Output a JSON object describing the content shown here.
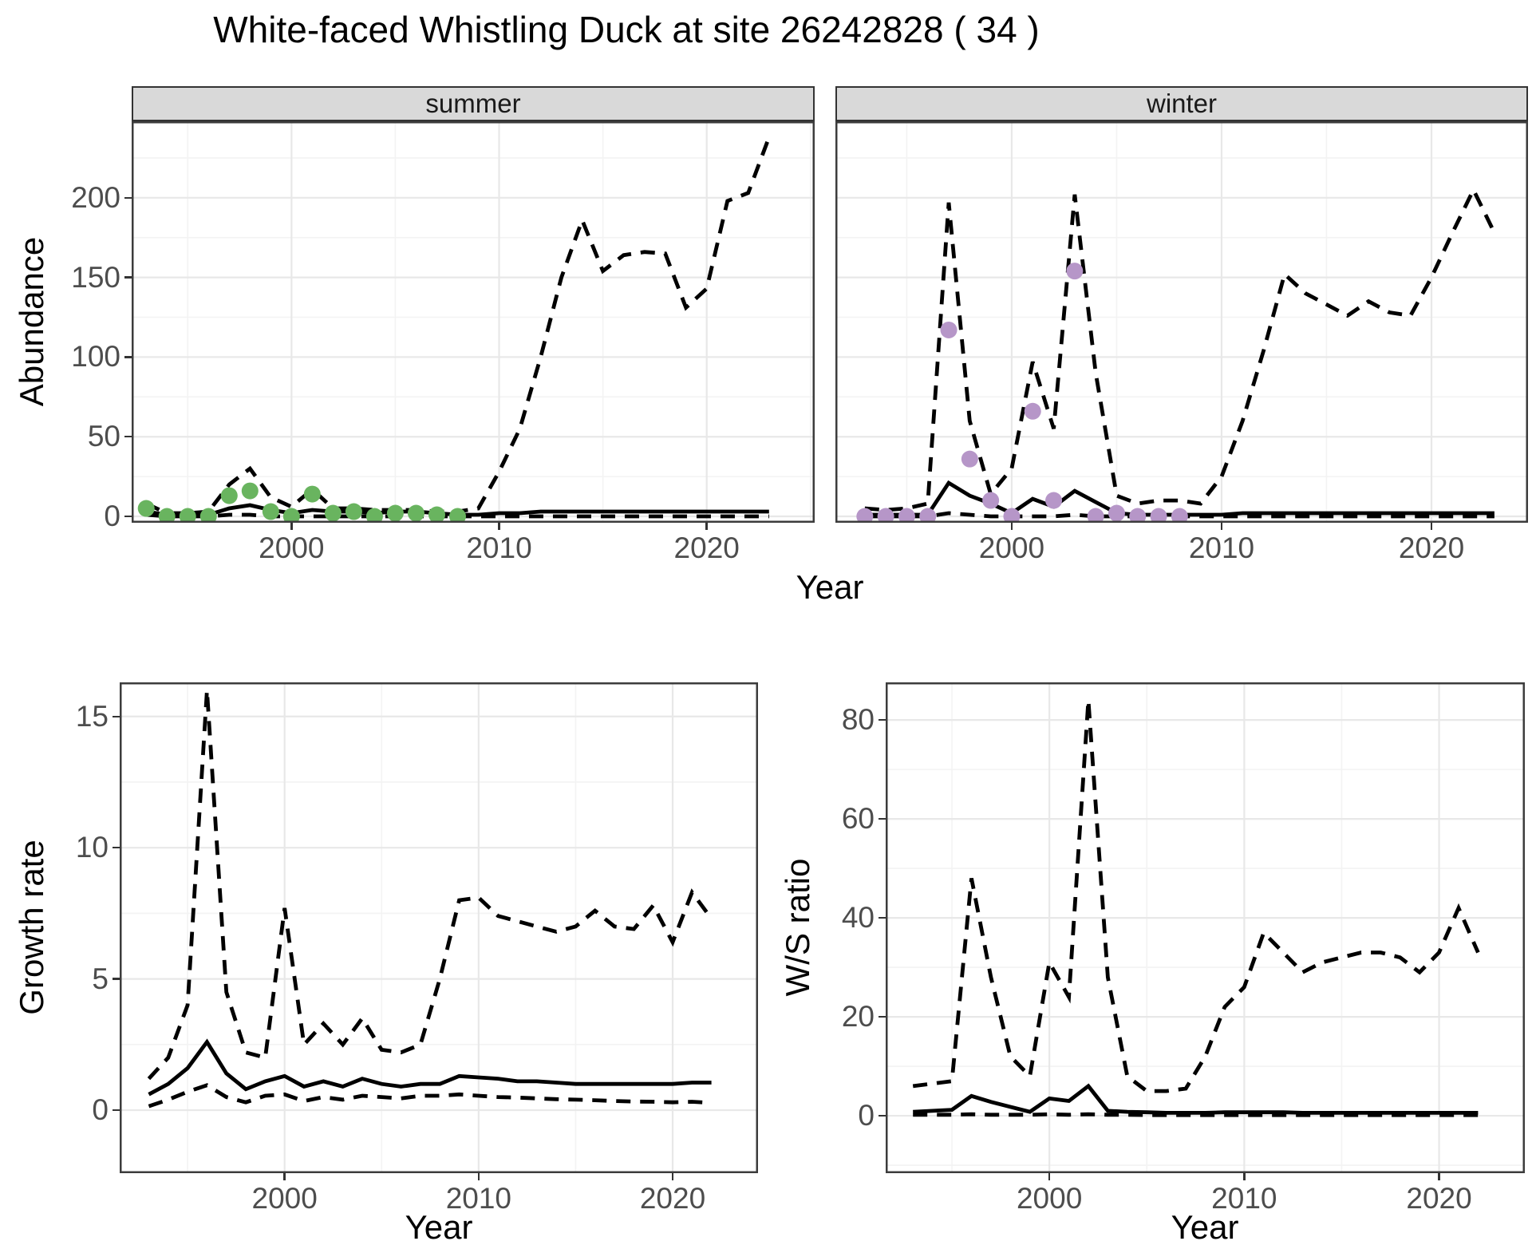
{
  "title": "White-faced Whistling Duck at site 26242828 ( 34 )",
  "axis": {
    "x_label": "Year",
    "abundance_label": "Abundance",
    "growth_label": "Growth rate",
    "ws_label": "W/S ratio"
  },
  "facets": {
    "summer": "summer",
    "winter": "winter"
  },
  "colors": {
    "summer_points": "#69B45F",
    "winter_points": "#B696C8",
    "line": "#000000",
    "strip_fill": "#D9D9D9",
    "strip_border": "#333333",
    "panel_border": "#3C3C3C",
    "grid_major": "#E8E8E8",
    "grid_minor": "#F3F3F3",
    "axis_text": "#4D4D4D",
    "tick_mark": "#333333"
  },
  "chart_data": [
    {
      "id": "abundance_summer",
      "type": "line",
      "facet_label": "summer",
      "ylabel": "Abundance",
      "xlabel": "Year",
      "xlim": [
        1992.3,
        2025.2
      ],
      "ylim": [
        -4,
        248
      ],
      "xticks": [
        2000,
        2010,
        2020
      ],
      "yticks": [
        0,
        50,
        100,
        150,
        200
      ],
      "grid": true,
      "legend": "none",
      "x": [
        1993,
        1994,
        1995,
        1996,
        1997,
        1998,
        1999,
        2000,
        2001,
        2002,
        2003,
        2004,
        2005,
        2006,
        2007,
        2008,
        2009,
        2010,
        2011,
        2012,
        2013,
        2014,
        2015,
        2016,
        2017,
        2018,
        2019,
        2020,
        2021,
        2022,
        2023
      ],
      "series": [
        {
          "name": "upper_95ci",
          "style": "dashed",
          "values": [
            8,
            2,
            2,
            3,
            20,
            30,
            12,
            6,
            17,
            5,
            5,
            4,
            4,
            4,
            3,
            3,
            5,
            28,
            55,
            100,
            150,
            186,
            154,
            164,
            166,
            165,
            131,
            143,
            198,
            203,
            238
          ]
        },
        {
          "name": "median",
          "style": "solid",
          "values": [
            3,
            1,
            1,
            1,
            5,
            7,
            4,
            2,
            4,
            3,
            3,
            2,
            3,
            3,
            2,
            1,
            1,
            2,
            2,
            3,
            3,
            3,
            3,
            3,
            3,
            3,
            3,
            3,
            3,
            3,
            3
          ]
        },
        {
          "name": "lower_95ci",
          "style": "dashed",
          "values": [
            1,
            0,
            0,
            0,
            1,
            1,
            0,
            0,
            0,
            0,
            0,
            0,
            0,
            0,
            0,
            0,
            0,
            0,
            0,
            0,
            0,
            0,
            0,
            0,
            0,
            0,
            0,
            0,
            0,
            0,
            0
          ]
        },
        {
          "name": "observations",
          "style": "points",
          "color_key": "summer_points",
          "x": [
            1993,
            1994,
            1995,
            1996,
            1997,
            1998,
            1999,
            2000,
            2001,
            2002,
            2003,
            2004,
            2005,
            2006,
            2007,
            2008
          ],
          "values": [
            5,
            0,
            0,
            0,
            13,
            16,
            3,
            0,
            14,
            2,
            3,
            0,
            2,
            2,
            1,
            0
          ]
        }
      ]
    },
    {
      "id": "abundance_winter",
      "type": "line",
      "facet_label": "winter",
      "ylabel": "Abundance",
      "xlabel": "Year",
      "xlim": [
        1991.6,
        2024.6
      ],
      "ylim": [
        -4,
        248
      ],
      "xticks": [
        2000,
        2010,
        2020
      ],
      "yticks": [
        0,
        50,
        100,
        150,
        200
      ],
      "grid": true,
      "legend": "none",
      "x": [
        1993,
        1994,
        1995,
        1996,
        1997,
        1998,
        1999,
        2000,
        2001,
        2002,
        2003,
        2004,
        2005,
        2006,
        2007,
        2008,
        2009,
        2010,
        2011,
        2012,
        2013,
        2014,
        2015,
        2016,
        2017,
        2018,
        2019,
        2020,
        2021,
        2022,
        2023
      ],
      "series": [
        {
          "name": "upper_95ci",
          "style": "dashed",
          "values": [
            5,
            4,
            5,
            8,
            197,
            60,
            14,
            30,
            97,
            55,
            202,
            90,
            13,
            8,
            10,
            10,
            8,
            25,
            60,
            104,
            152,
            140,
            133,
            126,
            135,
            128,
            126,
            150,
            178,
            205,
            178
          ]
        },
        {
          "name": "median",
          "style": "solid",
          "values": [
            1,
            1,
            1,
            1,
            21,
            13,
            8,
            2,
            11,
            6,
            16,
            9,
            2,
            1,
            1,
            1,
            1,
            1,
            2,
            2,
            2,
            2,
            2,
            2,
            2,
            2,
            2,
            2,
            2,
            2,
            2
          ]
        },
        {
          "name": "lower_95ci",
          "style": "dashed",
          "values": [
            0,
            0,
            0,
            0,
            2,
            1,
            0,
            0,
            0,
            0,
            1,
            0,
            0,
            0,
            0,
            0,
            0,
            0,
            0,
            0,
            0,
            0,
            0,
            0,
            0,
            0,
            0,
            0,
            0,
            0,
            0
          ]
        },
        {
          "name": "observations",
          "style": "points",
          "color_key": "winter_points",
          "x": [
            1993,
            1994,
            1995,
            1996,
            1997,
            1998,
            1999,
            2000,
            2001,
            2002,
            2003,
            2004,
            2005,
            2006,
            2007,
            2008
          ],
          "values": [
            0,
            0,
            0,
            0,
            117,
            36,
            10,
            0,
            66,
            10,
            154,
            0,
            2,
            0,
            0,
            0
          ]
        }
      ]
    },
    {
      "id": "growth_rate",
      "type": "line",
      "facet_label": "",
      "ylabel": "Growth rate",
      "xlabel": "Year",
      "xlim": [
        1991.5,
        2024.4
      ],
      "ylim": [
        -2.4,
        16.3
      ],
      "xticks": [
        2000,
        2010,
        2020
      ],
      "yticks": [
        0,
        5,
        10,
        15
      ],
      "grid": true,
      "legend": "none",
      "x": [
        1993,
        1994,
        1995,
        1996,
        1997,
        1998,
        1999,
        2000,
        2001,
        2002,
        2003,
        2004,
        2005,
        2006,
        2007,
        2008,
        2009,
        2010,
        2011,
        2012,
        2013,
        2014,
        2015,
        2016,
        2017,
        2018,
        2019,
        2020,
        2021,
        2022
      ],
      "series": [
        {
          "name": "upper_95ci",
          "style": "dashed",
          "values": [
            1.2,
            2.0,
            4.0,
            16.0,
            4.5,
            2.2,
            2.0,
            7.7,
            2.5,
            3.3,
            2.5,
            3.5,
            2.3,
            2.2,
            2.5,
            5.0,
            8.0,
            8.1,
            7.4,
            7.2,
            7.0,
            6.8,
            7.0,
            7.6,
            7.0,
            6.9,
            7.8,
            6.4,
            8.3,
            7.3
          ]
        },
        {
          "name": "median",
          "style": "solid",
          "values": [
            0.6,
            1.0,
            1.6,
            2.6,
            1.4,
            0.8,
            1.1,
            1.3,
            0.9,
            1.1,
            0.9,
            1.2,
            1.0,
            0.9,
            1.0,
            1.0,
            1.3,
            1.25,
            1.2,
            1.1,
            1.1,
            1.05,
            1.0,
            1.0,
            1.0,
            1.0,
            1.0,
            1.0,
            1.05,
            1.05
          ]
        },
        {
          "name": "lower_95ci",
          "style": "dashed",
          "values": [
            0.15,
            0.4,
            0.7,
            0.95,
            0.5,
            0.3,
            0.55,
            0.6,
            0.35,
            0.5,
            0.4,
            0.55,
            0.5,
            0.45,
            0.55,
            0.55,
            0.6,
            0.55,
            0.5,
            0.48,
            0.45,
            0.42,
            0.4,
            0.38,
            0.35,
            0.33,
            0.32,
            0.3,
            0.32,
            0.28
          ]
        }
      ]
    },
    {
      "id": "ws_ratio",
      "type": "line",
      "facet_label": "",
      "ylabel": "W/S ratio",
      "xlabel": "Year",
      "xlim": [
        1991.6,
        2024.4
      ],
      "ylim": [
        -11.6,
        87.6
      ],
      "xticks": [
        2000,
        2010,
        2020
      ],
      "yticks": [
        0,
        20,
        40,
        60,
        80
      ],
      "grid": true,
      "legend": "none",
      "x": [
        1993,
        1994,
        1995,
        1996,
        1997,
        1998,
        1999,
        2000,
        2001,
        2002,
        2003,
        2004,
        2005,
        2006,
        2007,
        2008,
        2009,
        2010,
        2011,
        2012,
        2013,
        2014,
        2015,
        2016,
        2017,
        2018,
        2019,
        2020,
        2021,
        2022
      ],
      "series": [
        {
          "name": "upper_95ci",
          "style": "dashed",
          "values": [
            6,
            6.5,
            7,
            48,
            28,
            12,
            8,
            31,
            24,
            84,
            28,
            8,
            5,
            5,
            5.5,
            12,
            22,
            26,
            37,
            33,
            29,
            31,
            32,
            33,
            33,
            32,
            29,
            33,
            42,
            33
          ]
        },
        {
          "name": "median",
          "style": "solid",
          "values": [
            0.8,
            1.0,
            1.2,
            4.0,
            2.8,
            1.8,
            0.8,
            3.5,
            3.0,
            6.0,
            1.0,
            0.8,
            0.7,
            0.6,
            0.6,
            0.6,
            0.7,
            0.7,
            0.7,
            0.7,
            0.6,
            0.6,
            0.6,
            0.6,
            0.6,
            0.6,
            0.6,
            0.6,
            0.6,
            0.6
          ]
        },
        {
          "name": "lower_95ci",
          "style": "dashed",
          "values": [
            0.2,
            0.2,
            0.2,
            0.3,
            0.2,
            0.2,
            0.2,
            0.3,
            0.2,
            0.3,
            0.2,
            0.2,
            0.15,
            0.15,
            0.15,
            0.15,
            0.15,
            0.15,
            0.15,
            0.15,
            0.15,
            0.15,
            0.15,
            0.15,
            0.15,
            0.15,
            0.15,
            0.15,
            0.15,
            0.15
          ]
        }
      ]
    }
  ]
}
